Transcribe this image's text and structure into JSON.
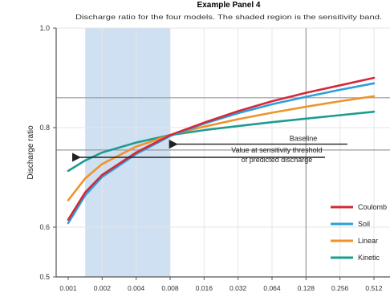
{
  "chart_data": {
    "type": "line",
    "title": "Example Panel 4",
    "subtitle": "Discharge ratio for the four models. The shaded region is the sensitivity band.",
    "xlabel": "",
    "ylabel": "Discharge ratio",
    "x_tick_labels": [
      "0.001",
      "0.002",
      "0.004",
      "0.008",
      "0.016",
      "0.032",
      "0.064",
      "0.128",
      "0.256",
      "0.512"
    ],
    "y_ticks": [
      {
        "value": 0.5,
        "label": "0.5"
      },
      {
        "value": 0.6,
        "label": "0.6"
      },
      {
        "value": 0.8,
        "label": "0.8"
      },
      {
        "value": 1.0,
        "label": "1.0"
      }
    ],
    "ylim": [
      0.5,
      1.0
    ],
    "xlim": [
      0,
      9
    ],
    "grid": true,
    "shaded_band": {
      "x0": 0.5,
      "x1": 3.0,
      "color": "#cfe0f3"
    },
    "h_reference_lines": [
      0.86,
      0.755
    ],
    "v_reference_line": 7,
    "series": [
      {
        "name": "Coulomb",
        "color": "#d62839",
        "x": [
          0,
          0.5,
          1,
          2,
          3,
          4,
          5,
          6,
          7,
          8,
          9
        ],
        "y": [
          0.615,
          0.67,
          0.705,
          0.75,
          0.785,
          0.81,
          0.833,
          0.853,
          0.87,
          0.885,
          0.9
        ]
      },
      {
        "name": "Soil",
        "color": "#2b9fdc",
        "x": [
          0,
          0.5,
          1,
          2,
          3,
          4,
          5,
          6,
          7,
          8,
          9
        ],
        "y": [
          0.608,
          0.664,
          0.701,
          0.747,
          0.783,
          0.808,
          0.829,
          0.847,
          0.862,
          0.876,
          0.889
        ]
      },
      {
        "name": "Linear",
        "color": "#f0922b",
        "x": [
          0,
          0.5,
          1,
          2,
          3,
          4,
          5,
          6,
          7,
          8,
          9
        ],
        "y": [
          0.654,
          0.698,
          0.727,
          0.762,
          0.785,
          0.802,
          0.817,
          0.83,
          0.842,
          0.853,
          0.863
        ]
      },
      {
        "name": "Kinetic",
        "color": "#1e9c8f",
        "x": [
          0,
          0.5,
          1,
          2,
          3,
          4,
          5,
          6,
          7,
          8,
          9
        ],
        "y": [
          0.713,
          0.734,
          0.75,
          0.77,
          0.785,
          0.795,
          0.803,
          0.811,
          0.818,
          0.825,
          0.832
        ]
      }
    ],
    "annotations": [
      {
        "text": "Baseline",
        "x": 8,
        "y": 0.77,
        "arrow_from_x": 6.8,
        "arrow_to_x": 3.2
      },
      {
        "lines": [
          "Value at sensitivity threshold",
          "of predicted discharge"
        ],
        "x": 8,
        "y": 0.742,
        "arrow_from_x": 7.0,
        "arrow_to_x": 0.3
      }
    ],
    "legend": {
      "position": "bottom-right",
      "entries": [
        "Coulomb",
        "Soil",
        "Linear",
        "Kinetic"
      ]
    }
  }
}
